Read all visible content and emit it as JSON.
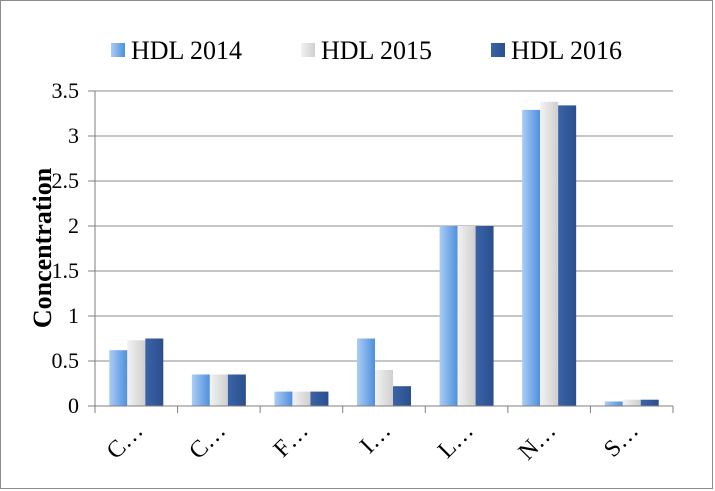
{
  "chart_data": {
    "type": "bar",
    "categories": [
      "C…",
      "C…",
      "F…",
      "I…",
      "L…",
      "N…",
      "S…"
    ],
    "series": [
      {
        "name": "HDL 2014",
        "values": [
          0.62,
          0.35,
          0.16,
          0.75,
          2.0,
          3.29,
          0.05
        ]
      },
      {
        "name": "HDL 2015",
        "values": [
          0.73,
          0.35,
          0.16,
          0.4,
          2.0,
          3.38,
          0.07
        ]
      },
      {
        "name": "HDL 2016",
        "values": [
          0.75,
          0.35,
          0.16,
          0.22,
          2.0,
          3.34,
          0.07
        ]
      }
    ],
    "ylabel": "Concentration",
    "ylim": [
      0,
      3.5
    ],
    "yticks": [
      "0",
      "0.5",
      "1",
      "1.5",
      "2",
      "2.5",
      "3",
      "3.5"
    ],
    "grid": true,
    "legend_position": "top",
    "colors": {
      "HDL 2014": "#5b9bd5",
      "HDL 2015": "#d9d9d9",
      "HDL 2016": "#2f5597",
      "axis": "#7f7f7f",
      "grid": "#8c8c8c"
    }
  }
}
